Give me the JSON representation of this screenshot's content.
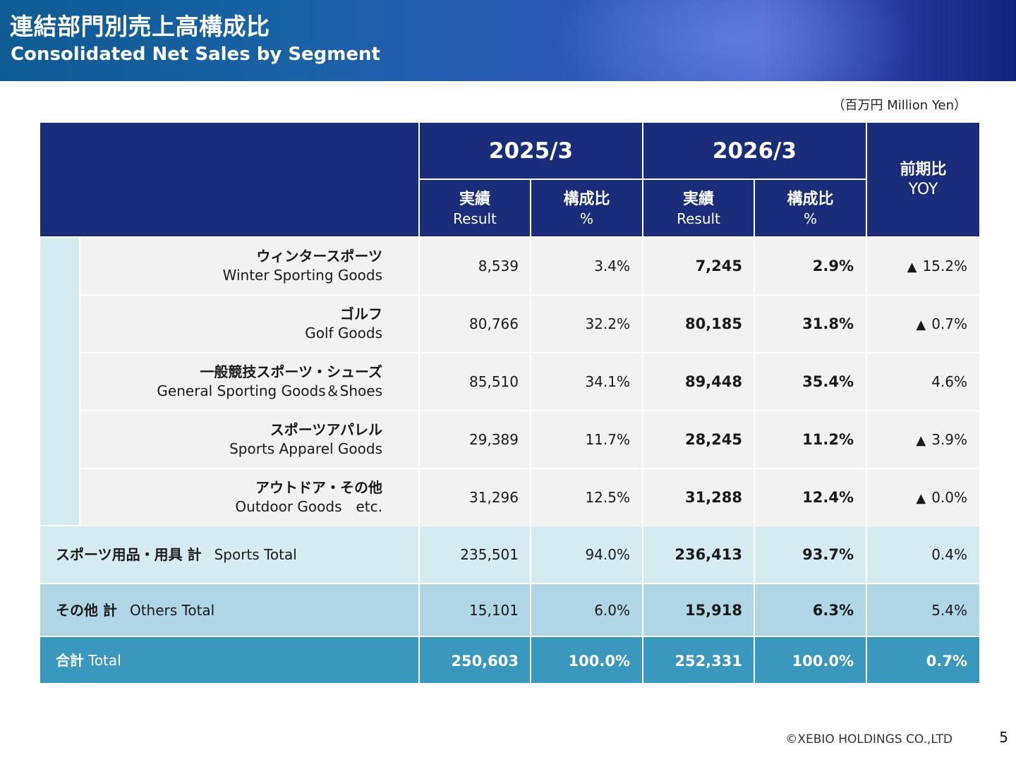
{
  "header": {
    "title_jp": "連結部門別売上高構成比",
    "title_en": "Consolidated Net Sales by Segment"
  },
  "unit_note": "（百万円 Million Yen）",
  "table": {
    "columns": {
      "fy2025": "2025/3",
      "fy2026": "2026/3",
      "result_jp": "実績",
      "result_en": "Result",
      "ratio_jp": "構成比",
      "ratio_en": "%",
      "yoy_jp": "前期比",
      "yoy_en": "YOY"
    },
    "segments": [
      {
        "name_jp": "ウィンタースポーツ",
        "name_en": "Winter Sporting Goods",
        "r2025": "8,539",
        "p2025": "3.4%",
        "r2026": "7,245",
        "p2026": "2.9%",
        "yoy_mark": "▲",
        "yoy": "15.2%"
      },
      {
        "name_jp": "ゴルフ",
        "name_en": "Golf Goods",
        "r2025": "80,766",
        "p2025": "32.2%",
        "r2026": "80,185",
        "p2026": "31.8%",
        "yoy_mark": "▲",
        "yoy": "0.7%"
      },
      {
        "name_jp": "一般競技スポーツ・シューズ",
        "name_en": "General Sporting Goods＆Shoes",
        "r2025": "85,510",
        "p2025": "34.1%",
        "r2026": "89,448",
        "p2026": "35.4%",
        "yoy_mark": "",
        "yoy": "4.6%"
      },
      {
        "name_jp": "スポーツアパレル",
        "name_en": "Sports Apparel Goods",
        "r2025": "29,389",
        "p2025": "11.7%",
        "r2026": "28,245",
        "p2026": "11.2%",
        "yoy_mark": "▲",
        "yoy": "3.9%"
      },
      {
        "name_jp": "アウトドア・その他",
        "name_en": "Outdoor Goods　etc.",
        "r2025": "31,296",
        "p2025": "12.5%",
        "r2026": "31,288",
        "p2026": "12.4%",
        "yoy_mark": "▲",
        "yoy": "0.0%"
      }
    ],
    "sports_total": {
      "label_jp": "スポーツ用品・用具 計",
      "label_en": "Sports Total",
      "r2025": "235,501",
      "p2025": "94.0%",
      "r2026": "236,413",
      "p2026": "93.7%",
      "yoy": "0.4%"
    },
    "others_total": {
      "label_jp": "その他 計",
      "label_en": "Others Total",
      "r2025": "15,101",
      "p2025": "6.0%",
      "r2026": "15,918",
      "p2026": "6.3%",
      "yoy": "5.4%"
    },
    "grand_total": {
      "label_jp": "合計",
      "label_en": "Total",
      "r2025": "250,603",
      "p2025": "100.0%",
      "r2026": "252,331",
      "p2026": "100.0%",
      "yoy": "0.7%"
    }
  },
  "footer": {
    "copyright": "©XEBIO HOLDINGS CO.,LTD",
    "page_number": "5"
  },
  "colors": {
    "header_navy": "#1a2c7a",
    "segment_bg": "#f2f2f2",
    "light_blue": "#d6eaf2",
    "mid_blue": "#afd6e4",
    "total_teal": "#3a97be"
  }
}
